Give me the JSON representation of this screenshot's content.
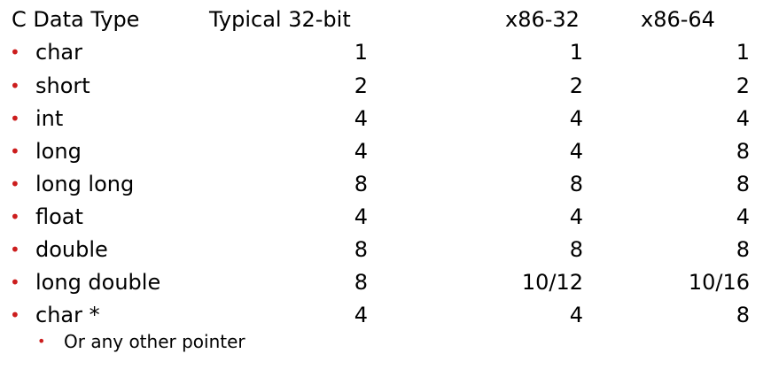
{
  "header": {
    "col_type": "C Data Type",
    "col_typical": "Typical 32-bit",
    "col_x86_32": "x86-32",
    "col_x86_64": "x86-64"
  },
  "bullet_glyph": "•",
  "accent_color": "#cc1d1d",
  "rows": [
    {
      "type": "char",
      "typical": "1",
      "x86_32": "1",
      "x86_64": "1"
    },
    {
      "type": "short",
      "typical": "2",
      "x86_32": "2",
      "x86_64": "2"
    },
    {
      "type": "int",
      "typical": "4",
      "x86_32": "4",
      "x86_64": "4"
    },
    {
      "type": "long",
      "typical": "4",
      "x86_32": "4",
      "x86_64": "8"
    },
    {
      "type": "long long",
      "typical": "8",
      "x86_32": "8",
      "x86_64": "8"
    },
    {
      "type": "float",
      "typical": "4",
      "x86_32": "4",
      "x86_64": "4"
    },
    {
      "type": "double",
      "typical": "8",
      "x86_32": "8",
      "x86_64": "8"
    },
    {
      "type": "long double",
      "typical": "8",
      "x86_32": "10/12",
      "x86_64": "10/16"
    },
    {
      "type": "char *",
      "typical": "4",
      "x86_32": "4",
      "x86_64": "8"
    }
  ],
  "sub_bullet": "Or any other pointer"
}
